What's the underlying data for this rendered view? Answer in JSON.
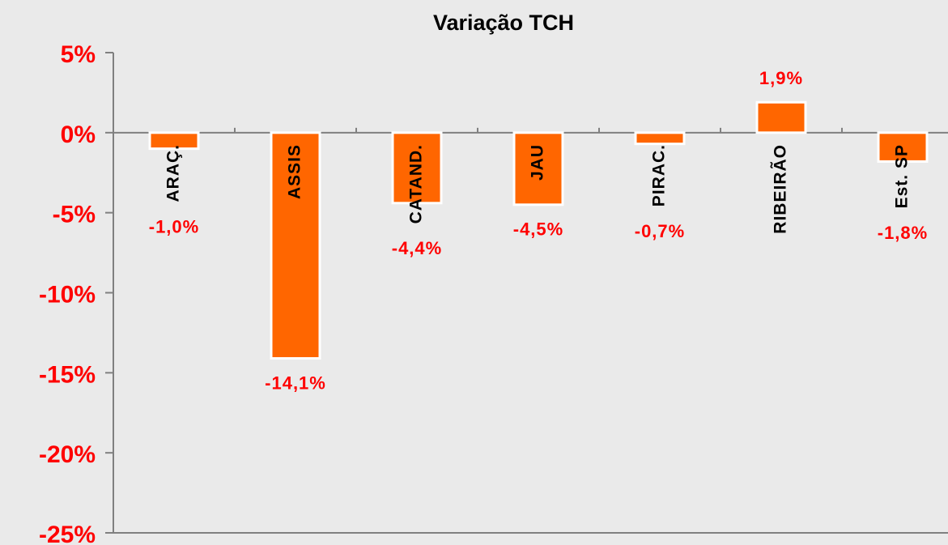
{
  "chart_data": {
    "type": "bar",
    "title": "Variação TCH",
    "categories": [
      "ARAÇ.",
      "ASSIS",
      "CATAND.",
      "JAU",
      "PIRAC.",
      "RIBEIRÃO",
      "Est. SP"
    ],
    "values": [
      -1.0,
      -14.1,
      -4.4,
      -4.5,
      -0.7,
      1.9,
      -1.8
    ],
    "value_labels": [
      "-1,0%",
      "-14,1%",
      "-4,4%",
      "-4,5%",
      "-0,7%",
      "1,9%",
      "-1,8%"
    ],
    "color": "#ff6600",
    "ylim": [
      -25,
      5
    ],
    "yticks": [
      {
        "value": -25,
        "label": "-25%"
      },
      {
        "value": -20,
        "label": "-20%"
      },
      {
        "value": -15,
        "label": "-15%"
      },
      {
        "value": -10,
        "label": "-10%"
      },
      {
        "value": -5,
        "label": "-5%"
      },
      {
        "value": 0,
        "label": "0%"
      },
      {
        "value": 5,
        "label": "5%"
      }
    ]
  }
}
